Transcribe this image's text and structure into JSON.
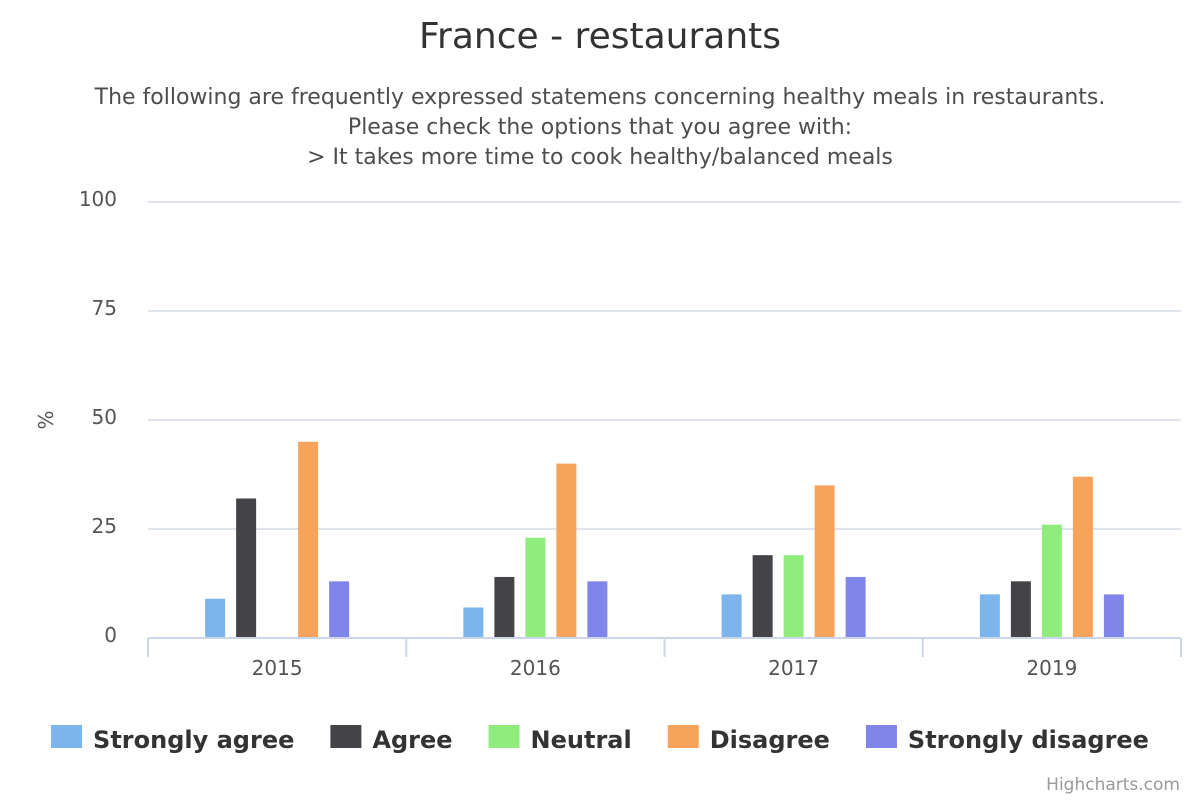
{
  "chart_data": {
    "type": "bar",
    "title": "France - restaurants",
    "subtitle_lines": [
      "The following are frequently expressed statemens concerning healthy meals in restaurants.",
      "Please check the options that you agree with:",
      "> It takes more time to cook healthy/balanced meals"
    ],
    "xlabel": "",
    "ylabel": "%",
    "ylim": [
      0,
      100
    ],
    "yticks": [
      0,
      25,
      50,
      75,
      100
    ],
    "grid": true,
    "legend_position": "bottom",
    "categories": [
      "2015",
      "2016",
      "2017",
      "2019"
    ],
    "series": [
      {
        "name": "Strongly agree",
        "color": "#7cb5ec",
        "values": [
          9,
          7,
          10,
          10
        ]
      },
      {
        "name": "Agree",
        "color": "#434348",
        "values": [
          32,
          14,
          19,
          13
        ]
      },
      {
        "name": "Neutral",
        "color": "#90ed7d",
        "values": [
          0,
          23,
          19,
          26
        ]
      },
      {
        "name": "Disagree",
        "color": "#f7a35c",
        "values": [
          45,
          40,
          35,
          37
        ]
      },
      {
        "name": "Strongly disagree",
        "color": "#8085e9",
        "values": [
          13,
          13,
          14,
          10
        ]
      }
    ]
  },
  "credits": "Highcharts.com"
}
